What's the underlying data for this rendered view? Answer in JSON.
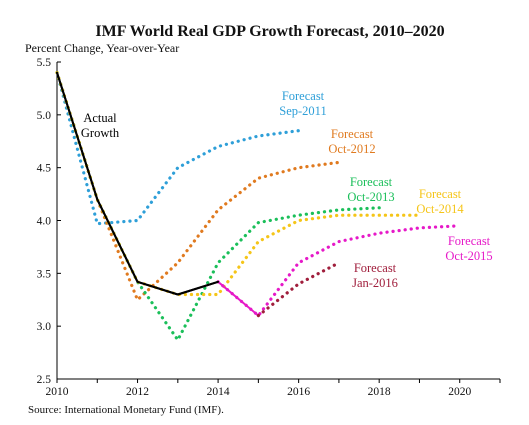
{
  "chart_data": {
    "type": "line",
    "title": "IMF World Real GDP Growth Forecast, 2010–2020",
    "ylabel": "Percent Change, Year-over-Year",
    "xlabel": "",
    "source": "Source: International Monetary Fund (IMF).",
    "xlim": [
      2010,
      2021
    ],
    "ylim": [
      2.5,
      5.5
    ],
    "x_ticks": [
      {
        "value": 2010,
        "label": "2010"
      },
      {
        "value": 2012,
        "label": "2012"
      },
      {
        "value": 2014,
        "label": "2014"
      },
      {
        "value": 2016,
        "label": "2016"
      },
      {
        "value": 2018,
        "label": "2018"
      },
      {
        "value": 2020,
        "label": "2020"
      }
    ],
    "y_ticks": [
      {
        "value": 2.5,
        "label": "2.5"
      },
      {
        "value": 3.0,
        "label": "3.0"
      },
      {
        "value": 3.5,
        "label": "3.5"
      },
      {
        "value": 4.0,
        "label": "4.0"
      },
      {
        "value": 4.5,
        "label": "4.5"
      },
      {
        "value": 5.0,
        "label": "5.0"
      },
      {
        "value": 5.5,
        "label": "5.5"
      }
    ],
    "grid": false,
    "legend": "inline-labels",
    "series": [
      {
        "name": "Actual Growth",
        "label_lines": [
          "Actual",
          "Growth"
        ],
        "color": "#000000",
        "style": "solid",
        "x": [
          2010,
          2011,
          2012,
          2013,
          2014
        ],
        "y": [
          5.4,
          4.2,
          3.42,
          3.3,
          3.42
        ]
      },
      {
        "name": "Forecast Sep-2011",
        "label_lines": [
          "Forecast",
          "Sep-2011"
        ],
        "color": "#2E9FD8",
        "style": "dotted",
        "x": [
          2010,
          2011,
          2012,
          2013,
          2014,
          2015,
          2016
        ],
        "y": [
          5.4,
          3.97,
          4.0,
          4.5,
          4.7,
          4.8,
          4.85
        ]
      },
      {
        "name": "Forecast Oct-2012",
        "label_lines": [
          "Forecast",
          "Oct-2012"
        ],
        "color": "#E07A1F",
        "style": "dotted",
        "x": [
          2010,
          2011,
          2012,
          2013,
          2014,
          2015,
          2016,
          2017
        ],
        "y": [
          5.4,
          4.2,
          3.25,
          3.6,
          4.1,
          4.4,
          4.5,
          4.55
        ]
      },
      {
        "name": "Forecast Oct-2013",
        "label_lines": [
          "Forecast",
          "Oct-2013"
        ],
        "color": "#1BBF5A",
        "style": "dotted",
        "x": [
          2010,
          2011,
          2012,
          2013,
          2014,
          2015,
          2016,
          2017,
          2018
        ],
        "y": [
          5.4,
          4.2,
          3.42,
          2.87,
          3.6,
          3.98,
          4.05,
          4.1,
          4.12
        ]
      },
      {
        "name": "Forecast Oct-2014",
        "label_lines": [
          "Forecast",
          "Oct-2014"
        ],
        "color": "#F5C518",
        "style": "dotted",
        "x": [
          2010,
          2011,
          2012,
          2013,
          2014,
          2015,
          2016,
          2017,
          2018,
          2019
        ],
        "y": [
          5.4,
          4.2,
          3.42,
          3.3,
          3.3,
          3.8,
          4.0,
          4.05,
          4.05,
          4.05
        ]
      },
      {
        "name": "Forecast Oct-2015",
        "label_lines": [
          "Forecast",
          "Oct-2015"
        ],
        "color": "#E619C8",
        "style": "dotted",
        "x": [
          2014,
          2015,
          2016,
          2017,
          2018,
          2019,
          2020
        ],
        "y": [
          3.42,
          3.1,
          3.6,
          3.8,
          3.88,
          3.93,
          3.95
        ],
        "x_solid": [
          2014,
          2015
        ],
        "y_solid": [
          3.42,
          3.1
        ]
      },
      {
        "name": "Forecast Jan-2016",
        "label_lines": [
          "Forecast",
          "Jan-2016"
        ],
        "color": "#A01E3C",
        "style": "dotted",
        "x": [
          2015,
          2016,
          2017
        ],
        "y": [
          3.1,
          3.4,
          3.6
        ]
      }
    ]
  }
}
